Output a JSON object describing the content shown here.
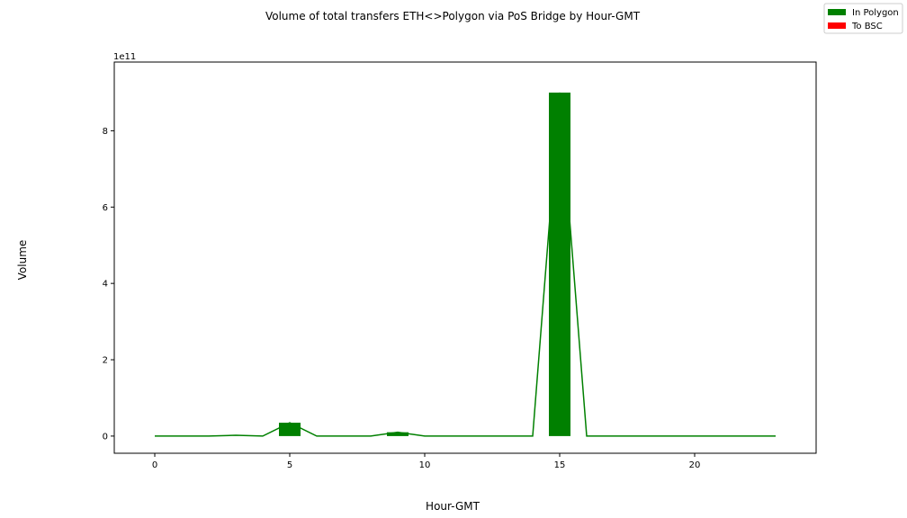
{
  "chart_data": {
    "type": "bar",
    "title": "Volume of total transfers ETH<>Polygon via PoS Bridge by Hour-GMT",
    "xlabel": "Hour-GMT",
    "ylabel": "Volume",
    "y_offset_text": "1e11",
    "xlim": [
      -1.5,
      24.5
    ],
    "ylim": [
      -0.45,
      9.8
    ],
    "y_scale_exponent": 11,
    "x_ticks": [
      0,
      5,
      10,
      15,
      20
    ],
    "x_tick_labels": [
      "0",
      "5",
      "10",
      "15",
      "20"
    ],
    "y_ticks": [
      0,
      2,
      4,
      6,
      8
    ],
    "y_tick_labels": [
      "0",
      "2",
      "4",
      "6",
      "8"
    ],
    "grid": false,
    "legend_position": "top-right",
    "colors": {
      "in_polygon": "#008000",
      "to_bsc": "#ff0000"
    },
    "series": [
      {
        "name": "In Polygon",
        "kind": "bar",
        "x": [
          5,
          9,
          15
        ],
        "values": [
          0.35,
          0.1,
          9.0
        ]
      },
      {
        "kind": "line",
        "x": [
          0,
          1,
          2,
          3,
          4,
          5,
          6,
          7,
          8,
          9,
          10,
          11,
          12,
          13,
          14,
          15,
          16,
          17,
          18,
          19,
          20,
          21,
          22,
          23
        ],
        "values": [
          0,
          0,
          0,
          0.02,
          0,
          0.35,
          0,
          0,
          0,
          0.1,
          0,
          0,
          0,
          0,
          0,
          9.0,
          0,
          0,
          0,
          0,
          0,
          0,
          0,
          0
        ]
      }
    ],
    "legend": [
      {
        "label": "In Polygon",
        "color": "#008000"
      },
      {
        "label": "To BSC",
        "color": "#ff0000"
      }
    ]
  }
}
